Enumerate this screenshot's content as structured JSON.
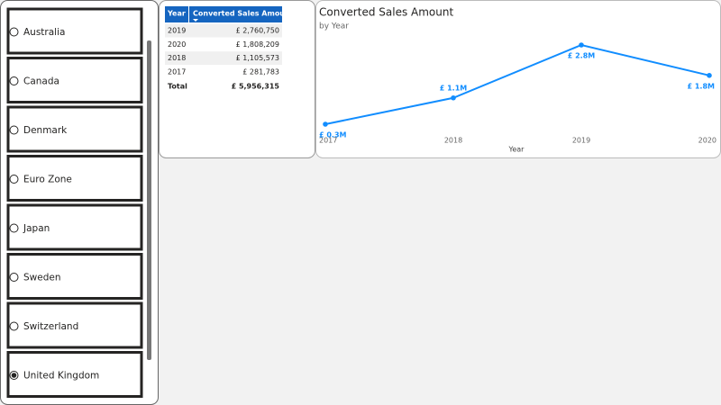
{
  "slicer": {
    "items": [
      {
        "label": "Australia",
        "selected": false
      },
      {
        "label": "Canada",
        "selected": false
      },
      {
        "label": "Denmark",
        "selected": false
      },
      {
        "label": "Euro Zone",
        "selected": false
      },
      {
        "label": "Japan",
        "selected": false
      },
      {
        "label": "Sweden",
        "selected": false
      },
      {
        "label": "Switzerland",
        "selected": false
      },
      {
        "label": "United Kingdom",
        "selected": true
      }
    ]
  },
  "table": {
    "headers": [
      "Year",
      "Converted Sales Amount"
    ],
    "rows": [
      [
        "2019",
        "£ 2,760,750"
      ],
      [
        "2020",
        "£ 1,808,209"
      ],
      [
        "2018",
        "£ 1,105,573"
      ],
      [
        "2017",
        "£ 281,783"
      ]
    ],
    "total": [
      "Total",
      "£ 5,956,315"
    ]
  },
  "chart_data": {
    "type": "line",
    "title": "Converted Sales Amount",
    "subtitle": "by Year",
    "x_label": "Year",
    "categories": [
      "2017",
      "2018",
      "2019",
      "2020"
    ],
    "values": [
      281783,
      1105573,
      2760750,
      1808209
    ],
    "value_labels": [
      "£ 0.3M",
      "£ 1.1M",
      "£ 2.8M",
      "£ 1.8M"
    ],
    "color": "#118dff"
  }
}
